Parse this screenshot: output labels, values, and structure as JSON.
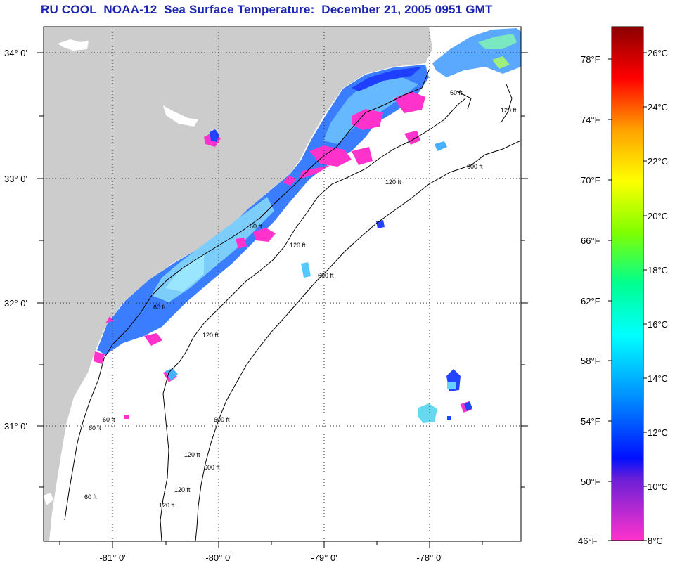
{
  "title": "RU COOL  NOAA-12  Sea Surface Temperature:  December 21, 2005 0951 GMT",
  "map": {
    "land_color": "#cccccc",
    "ocean_color": "#ffffff",
    "lat_labels": [
      "34° 0'",
      "33° 0'",
      "32° 0'",
      "31° 0'"
    ],
    "lon_labels": [
      "-81° 0'",
      "-80° 0'",
      "-79° 0'",
      "-78° 0'"
    ],
    "contour_labels": [
      "60 ft",
      "120 ft",
      "600 ft",
      "120 ft",
      "120 ft",
      "600 ft",
      "60 ft",
      "120 ft",
      "600 ft",
      "60 ft",
      "60 ft",
      "120 ft",
      "60 ft",
      "120 ft",
      "60 ft",
      "120 ft",
      "600 ft"
    ]
  },
  "colorbar": {
    "fahrenheit_labels": [
      "78°F",
      "74°F",
      "70°F",
      "66°F",
      "62°F",
      "58°F",
      "54°F",
      "50°F",
      "46°F"
    ],
    "celsius_labels": [
      "26°C",
      "24°C",
      "22°C",
      "20°C",
      "18°C",
      "16°C",
      "14°C",
      "12°C",
      "10°C",
      "8°C"
    ],
    "colors": [
      "#8b0000",
      "#ff0000",
      "#ff8c00",
      "#ffff00",
      "#7fff00",
      "#00ff7f",
      "#00ffff",
      "#0080ff",
      "#0000ff",
      "#ff00ff"
    ]
  }
}
